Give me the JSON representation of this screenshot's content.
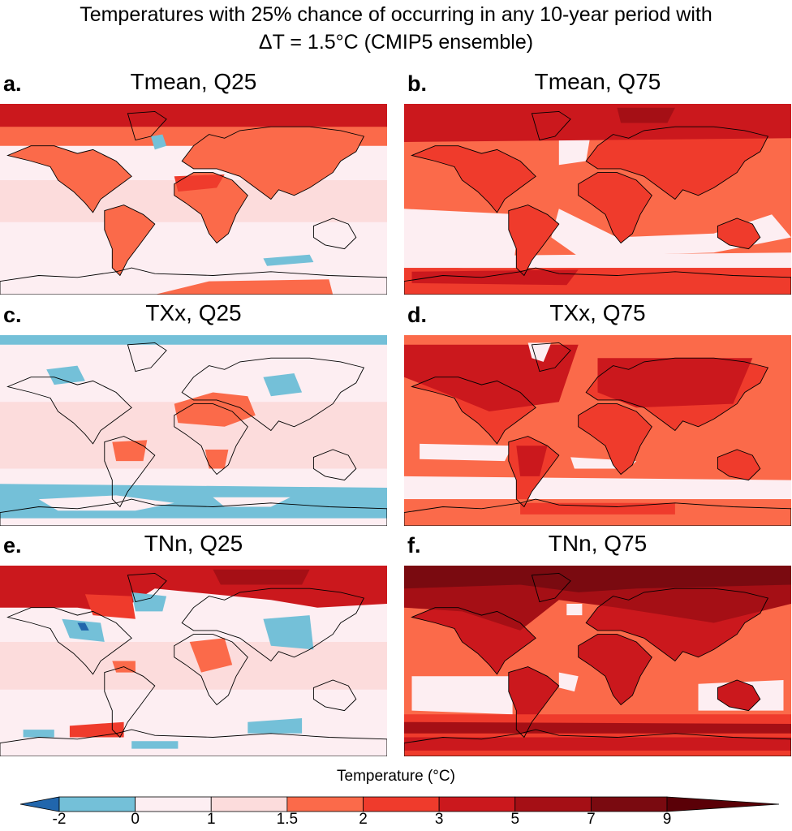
{
  "chart_data": {
    "type": "heatmap",
    "title": "Temperatures with 25% chance of occurring in any 10-year period with",
    "subtitle": "ΔT = 1.5°C (CMIP5 ensemble)",
    "projection": "global equirectangular",
    "panels": [
      {
        "id": "a",
        "label": "a.",
        "title": "Tmean, Q25",
        "background_bin": "0-1",
        "regions": [
          {
            "area": "arctic band",
            "bin": "3-5"
          },
          {
            "area": "northern high latitudes land",
            "bin": "2-3"
          },
          {
            "area": "North America / Eurasia",
            "bin": "1.5-2"
          },
          {
            "area": "Africa",
            "bin": "1.5-2"
          },
          {
            "area": "South America",
            "bin": "1.5-2"
          },
          {
            "area": "subtropical oceans",
            "bin": "1-1.5"
          },
          {
            "area": "Southern Ocean patches",
            "bin": "-2-0"
          },
          {
            "area": "North Atlantic patch",
            "bin": "-2-0"
          },
          {
            "area": "Antarctica interior",
            "bin": "1.5-2"
          }
        ]
      },
      {
        "id": "b",
        "label": "b.",
        "title": "Tmean, Q75",
        "background_bin": "1.5-2",
        "regions": [
          {
            "area": "arctic band",
            "bin": "5-7"
          },
          {
            "area": "continents",
            "bin": "2-3"
          },
          {
            "area": "North Atlantic",
            "bin": "0-1"
          },
          {
            "area": "southern subtropical oceans",
            "bin": "0-1"
          },
          {
            "area": "Antarctica",
            "bin": "2-3"
          }
        ]
      },
      {
        "id": "c",
        "label": "c.",
        "title": "TXx, Q25",
        "background_bin": "0-1",
        "regions": [
          {
            "area": "arctic band",
            "bin": "-2-0"
          },
          {
            "area": "Southern Ocean band",
            "bin": "-2-0"
          },
          {
            "area": "Sahara / Middle East",
            "bin": "1.5-2"
          },
          {
            "area": "Brazil",
            "bin": "1.5-2"
          },
          {
            "area": "southern Africa",
            "bin": "1.5-2"
          },
          {
            "area": "tropical oceans",
            "bin": "1-1.5"
          },
          {
            "area": "East Asia",
            "bin": "-2-0"
          }
        ]
      },
      {
        "id": "d",
        "label": "d.",
        "title": "TXx, Q75",
        "background_bin": "1.5-2",
        "regions": [
          {
            "area": "northern continents",
            "bin": "3-5"
          },
          {
            "area": "South America",
            "bin": "3-5"
          },
          {
            "area": "Africa",
            "bin": "2-3"
          },
          {
            "area": "southern subtropical oceans",
            "bin": "0-1"
          },
          {
            "area": "Southern Ocean",
            "bin": "0-1"
          },
          {
            "area": "Antarctica",
            "bin": "2-3"
          }
        ]
      },
      {
        "id": "e",
        "label": "e.",
        "title": "TNn, Q25",
        "background_bin": "0-1",
        "regions": [
          {
            "area": "arctic band",
            "bin": "3-5"
          },
          {
            "area": "Siberia",
            "bin": "5-7"
          },
          {
            "area": "North America interior",
            "bin": "-2-0"
          },
          {
            "area": "Central Asia",
            "bin": "-2-0"
          },
          {
            "area": "Africa",
            "bin": "1.5-2"
          },
          {
            "area": "Antarctic Peninsula",
            "bin": "2-3"
          },
          {
            "area": "Southern Ocean patches",
            "bin": "-2-0"
          }
        ]
      },
      {
        "id": "f",
        "label": "f.",
        "title": "TNn, Q75",
        "background_bin": "1.5-2",
        "regions": [
          {
            "area": "arctic band",
            "bin": "7-9"
          },
          {
            "area": "northern continents",
            "bin": "5-7"
          },
          {
            "area": "Africa / South America",
            "bin": "3-5"
          },
          {
            "area": "southern subtropical oceans",
            "bin": "0-1"
          },
          {
            "area": "Southern Ocean band",
            "bin": "5-7"
          },
          {
            "area": "Antarctica",
            "bin": "3-5"
          }
        ]
      }
    ],
    "colorbar": {
      "label": "Temperature (°C)",
      "extend": "both",
      "ticks": [
        "-2",
        "0",
        "1",
        "1.5",
        "2",
        "3",
        "5",
        "7",
        "9"
      ],
      "bins": [
        {
          "range": "<-2",
          "color": "#2166ac"
        },
        {
          "range": "-2-0",
          "color": "#74c0d8"
        },
        {
          "range": "0-1",
          "color": "#fdeef2"
        },
        {
          "range": "1-1.5",
          "color": "#fcdcdc"
        },
        {
          "range": "1.5-2",
          "color": "#fb6a4a"
        },
        {
          "range": "2-3",
          "color": "#ef3b2c"
        },
        {
          "range": "3-5",
          "color": "#cb181d"
        },
        {
          "range": "5-7",
          "color": "#a50f15"
        },
        {
          "range": "7-9",
          "color": "#7a0a10"
        },
        {
          "range": ">9",
          "color": "#5a0007"
        }
      ]
    }
  }
}
